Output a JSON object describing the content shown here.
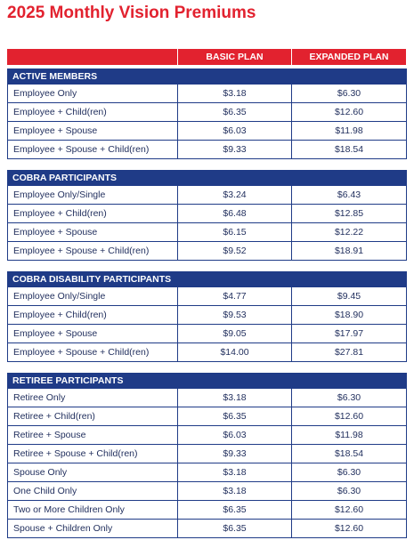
{
  "header": {
    "title": "2025 Monthly Vision Premiums"
  },
  "table": {
    "columns": [
      "BASIC PLAN",
      "EXPANDED PLAN"
    ],
    "sections": [
      {
        "title": "ACTIVE MEMBERS",
        "rows": [
          [
            "Employee Only",
            "$3.18",
            "$6.30"
          ],
          [
            "Employee + Child(ren)",
            "$6.35",
            "$12.60"
          ],
          [
            "Employee + Spouse",
            "$6.03",
            "$11.98"
          ],
          [
            "Employee + Spouse + Child(ren)",
            "$9.33",
            "$18.54"
          ]
        ]
      },
      {
        "title": "COBRA PARTICIPANTS",
        "rows": [
          [
            "Employee Only/Single",
            "$3.24",
            "$6.43"
          ],
          [
            "Employee + Child(ren)",
            "$6.48",
            "$12.85"
          ],
          [
            "Employee + Spouse",
            "$6.15",
            "$12.22"
          ],
          [
            "Employee + Spouse + Child(ren)",
            "$9.52",
            "$18.91"
          ]
        ]
      },
      {
        "title": "COBRA DISABILITY PARTICIPANTS",
        "rows": [
          [
            "Employee Only/Single",
            "$4.77",
            "$9.45"
          ],
          [
            "Employee + Child(ren)",
            "$9.53",
            "$18.90"
          ],
          [
            "Employee + Spouse",
            "$9.05",
            "$17.97"
          ],
          [
            "Employee + Spouse + Child(ren)",
            "$14.00",
            "$27.81"
          ]
        ]
      },
      {
        "title": "RETIREE PARTICIPANTS",
        "rows": [
          [
            "Retiree Only",
            "$3.18",
            "$6.30"
          ],
          [
            "Retiree + Child(ren)",
            "$6.35",
            "$12.60"
          ],
          [
            "Retiree + Spouse",
            "$6.03",
            "$11.98"
          ],
          [
            "Retiree + Spouse + Child(ren)",
            "$9.33",
            "$18.54"
          ],
          [
            "Spouse Only",
            "$3.18",
            "$6.30"
          ],
          [
            "One Child Only",
            "$3.18",
            "$6.30"
          ],
          [
            "Two or More Children Only",
            "$6.35",
            "$12.60"
          ],
          [
            "Spouse + Children Only",
            "$6.35",
            "$12.60"
          ]
        ]
      }
    ]
  }
}
